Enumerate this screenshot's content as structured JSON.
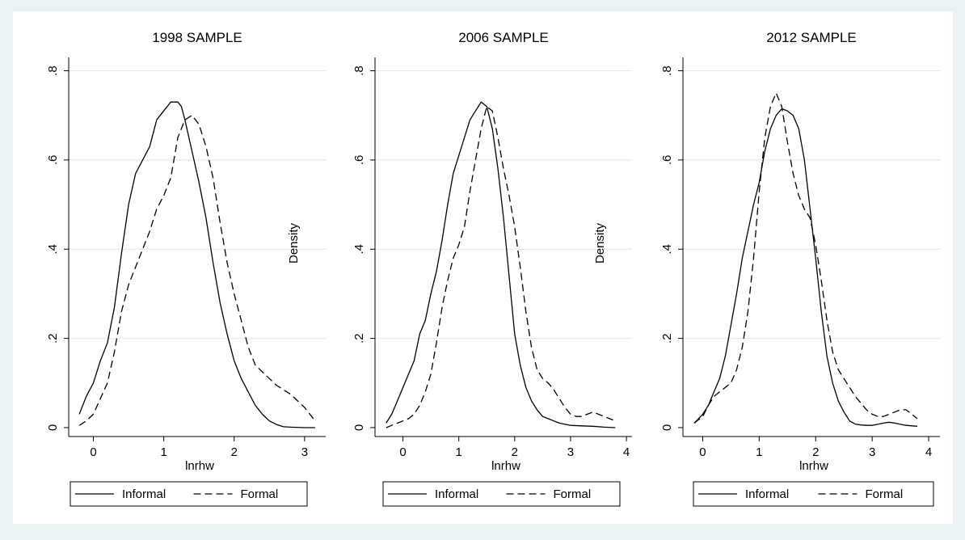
{
  "chart_data": [
    {
      "type": "line",
      "title": "1998 SAMPLE",
      "xlabel": "lnrhw",
      "ylabel": "Density",
      "xlim": [
        -0.35,
        3.3
      ],
      "ylim": [
        -0.02,
        0.83
      ],
      "xticks": [
        0,
        1,
        2,
        3
      ],
      "xtick_labels": [
        "0",
        "1",
        "2",
        "3"
      ],
      "yticks": [
        0,
        0.2,
        0.4,
        0.6,
        0.8
      ],
      "ytick_labels": [
        "0",
        ".2",
        ".4",
        ".6",
        ".8"
      ],
      "grid": true,
      "legend": "bottom",
      "series": [
        {
          "name": "Informal",
          "dash": "solid",
          "x": [
            -0.2,
            -0.1,
            0.0,
            0.1,
            0.2,
            0.3,
            0.4,
            0.5,
            0.6,
            0.7,
            0.8,
            0.9,
            1.0,
            1.1,
            1.2,
            1.25,
            1.3,
            1.4,
            1.5,
            1.6,
            1.7,
            1.8,
            1.9,
            2.0,
            2.1,
            2.2,
            2.3,
            2.4,
            2.5,
            2.6,
            2.7,
            2.8,
            3.0,
            3.15
          ],
          "y": [
            0.03,
            0.07,
            0.1,
            0.15,
            0.19,
            0.27,
            0.39,
            0.5,
            0.57,
            0.6,
            0.63,
            0.69,
            0.71,
            0.73,
            0.73,
            0.72,
            0.69,
            0.62,
            0.55,
            0.47,
            0.37,
            0.28,
            0.21,
            0.15,
            0.11,
            0.08,
            0.05,
            0.03,
            0.015,
            0.007,
            0.002,
            0.001,
            0.0,
            0.0
          ]
        },
        {
          "name": "Formal",
          "dash": "dashed",
          "x": [
            -0.2,
            -0.1,
            0.0,
            0.1,
            0.2,
            0.3,
            0.4,
            0.5,
            0.6,
            0.7,
            0.8,
            0.9,
            1.0,
            1.1,
            1.2,
            1.3,
            1.4,
            1.5,
            1.6,
            1.7,
            1.8,
            1.9,
            2.0,
            2.1,
            2.2,
            2.3,
            2.4,
            2.5,
            2.6,
            2.7,
            2.8,
            2.9,
            3.0,
            3.1,
            3.15
          ],
          "y": [
            0.005,
            0.015,
            0.03,
            0.065,
            0.1,
            0.17,
            0.26,
            0.32,
            0.36,
            0.4,
            0.44,
            0.49,
            0.52,
            0.56,
            0.65,
            0.69,
            0.7,
            0.68,
            0.63,
            0.56,
            0.46,
            0.37,
            0.3,
            0.24,
            0.18,
            0.14,
            0.125,
            0.11,
            0.095,
            0.085,
            0.075,
            0.06,
            0.045,
            0.025,
            0.015
          ]
        }
      ]
    },
    {
      "type": "line",
      "title": "2006 SAMPLE",
      "xlabel": "lnrhw",
      "ylabel": "Density",
      "xlim": [
        -0.5,
        4.1
      ],
      "ylim": [
        -0.02,
        0.83
      ],
      "xticks": [
        0,
        1,
        2,
        3,
        4
      ],
      "xtick_labels": [
        "0",
        "1",
        "2",
        "3",
        "4"
      ],
      "yticks": [
        0,
        0.2,
        0.4,
        0.6,
        0.8
      ],
      "ytick_labels": [
        "0",
        ".2",
        ".4",
        ".6",
        ".8"
      ],
      "grid": true,
      "legend": "bottom",
      "series": [
        {
          "name": "Informal",
          "dash": "solid",
          "x": [
            -0.3,
            -0.2,
            -0.1,
            0.0,
            0.1,
            0.2,
            0.3,
            0.4,
            0.5,
            0.6,
            0.7,
            0.8,
            0.9,
            1.0,
            1.1,
            1.2,
            1.3,
            1.4,
            1.5,
            1.6,
            1.7,
            1.8,
            1.9,
            2.0,
            2.1,
            2.2,
            2.3,
            2.4,
            2.5,
            2.6,
            2.7,
            2.8,
            3.0,
            3.2,
            3.4,
            3.6,
            3.8
          ],
          "y": [
            0.01,
            0.03,
            0.06,
            0.09,
            0.12,
            0.15,
            0.21,
            0.24,
            0.3,
            0.35,
            0.42,
            0.5,
            0.57,
            0.61,
            0.65,
            0.69,
            0.71,
            0.73,
            0.72,
            0.67,
            0.58,
            0.47,
            0.34,
            0.21,
            0.14,
            0.09,
            0.06,
            0.04,
            0.025,
            0.02,
            0.015,
            0.01,
            0.005,
            0.004,
            0.003,
            0.001,
            0.0
          ]
        },
        {
          "name": "Formal",
          "dash": "dashed",
          "x": [
            -0.3,
            -0.2,
            -0.1,
            0.0,
            0.1,
            0.2,
            0.3,
            0.4,
            0.5,
            0.6,
            0.7,
            0.8,
            0.9,
            1.0,
            1.1,
            1.2,
            1.3,
            1.4,
            1.5,
            1.6,
            1.7,
            1.8,
            1.9,
            2.0,
            2.1,
            2.2,
            2.3,
            2.4,
            2.5,
            2.6,
            2.7,
            2.8,
            2.9,
            3.0,
            3.1,
            3.2,
            3.3,
            3.4,
            3.5,
            3.6,
            3.7,
            3.8
          ],
          "y": [
            0.0,
            0.005,
            0.01,
            0.015,
            0.02,
            0.03,
            0.05,
            0.08,
            0.12,
            0.19,
            0.27,
            0.33,
            0.38,
            0.41,
            0.45,
            0.53,
            0.6,
            0.67,
            0.72,
            0.71,
            0.65,
            0.58,
            0.52,
            0.45,
            0.36,
            0.26,
            0.18,
            0.13,
            0.11,
            0.1,
            0.085,
            0.065,
            0.045,
            0.03,
            0.025,
            0.025,
            0.03,
            0.035,
            0.03,
            0.025,
            0.02,
            0.015
          ]
        }
      ]
    },
    {
      "type": "line",
      "title": "2012 SAMPLE",
      "xlabel": "lnrhw",
      "ylabel": "",
      "xlim": [
        -0.35,
        4.2
      ],
      "ylim": [
        -0.02,
        0.83
      ],
      "xticks": [
        0,
        1,
        2,
        3,
        4
      ],
      "xtick_labels": [
        "0",
        "1",
        "2",
        "3",
        "4"
      ],
      "yticks": [
        0,
        0.2,
        0.4,
        0.6,
        0.8
      ],
      "ytick_labels": [
        "0",
        ".2",
        ".4",
        ".6",
        ".8"
      ],
      "grid": true,
      "legend": "bottom",
      "series": [
        {
          "name": "Informal",
          "dash": "solid",
          "x": [
            -0.15,
            0.0,
            0.1,
            0.2,
            0.3,
            0.4,
            0.5,
            0.6,
            0.7,
            0.8,
            0.9,
            1.0,
            1.1,
            1.2,
            1.3,
            1.4,
            1.5,
            1.6,
            1.7,
            1.8,
            1.9,
            2.0,
            2.1,
            2.2,
            2.3,
            2.4,
            2.5,
            2.6,
            2.7,
            2.8,
            2.9,
            3.0,
            3.2,
            3.3,
            3.4,
            3.6,
            3.8
          ],
          "y": [
            0.01,
            0.03,
            0.05,
            0.08,
            0.11,
            0.16,
            0.23,
            0.3,
            0.38,
            0.44,
            0.5,
            0.55,
            0.62,
            0.67,
            0.7,
            0.715,
            0.71,
            0.7,
            0.67,
            0.6,
            0.49,
            0.38,
            0.26,
            0.16,
            0.1,
            0.06,
            0.035,
            0.015,
            0.008,
            0.006,
            0.005,
            0.005,
            0.01,
            0.012,
            0.01,
            0.005,
            0.003
          ]
        },
        {
          "name": "Formal",
          "dash": "dashed",
          "x": [
            -0.15,
            0.0,
            0.1,
            0.2,
            0.3,
            0.4,
            0.5,
            0.6,
            0.7,
            0.8,
            0.9,
            1.0,
            1.1,
            1.2,
            1.3,
            1.4,
            1.5,
            1.6,
            1.7,
            1.8,
            1.9,
            2.0,
            2.1,
            2.2,
            2.3,
            2.4,
            2.5,
            2.6,
            2.7,
            2.8,
            2.9,
            3.0,
            3.1,
            3.2,
            3.3,
            3.4,
            3.5,
            3.6,
            3.7,
            3.8
          ],
          "y": [
            0.01,
            0.025,
            0.05,
            0.07,
            0.08,
            0.09,
            0.1,
            0.13,
            0.18,
            0.26,
            0.38,
            0.53,
            0.65,
            0.72,
            0.75,
            0.72,
            0.64,
            0.57,
            0.52,
            0.49,
            0.47,
            0.41,
            0.33,
            0.24,
            0.17,
            0.13,
            0.11,
            0.09,
            0.07,
            0.055,
            0.04,
            0.03,
            0.025,
            0.025,
            0.03,
            0.035,
            0.04,
            0.04,
            0.03,
            0.02
          ]
        }
      ]
    }
  ]
}
